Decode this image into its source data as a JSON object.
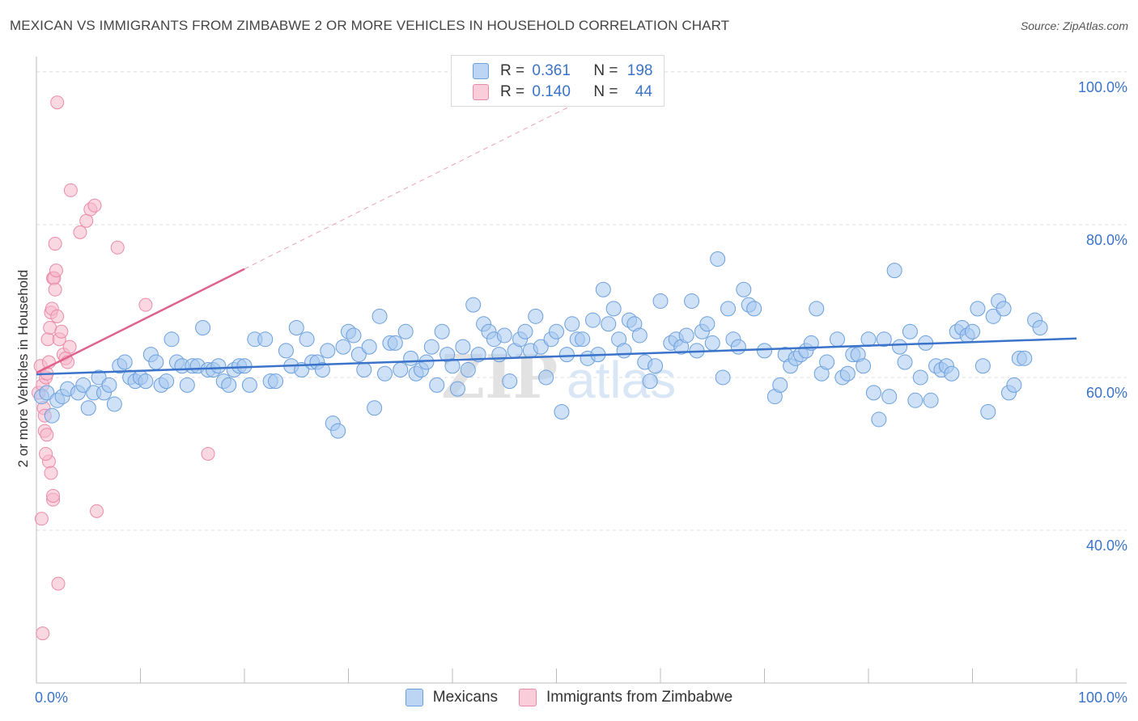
{
  "header": {
    "title": "MEXICAN VS IMMIGRANTS FROM ZIMBABWE 2 OR MORE VEHICLES IN HOUSEHOLD CORRELATION CHART",
    "source": "Source: ZipAtlas.com"
  },
  "legend": {
    "rows": [
      {
        "r_label": "R =",
        "r_value": "0.361",
        "n_label": "N =",
        "n_value": "198"
      },
      {
        "r_label": "R =",
        "r_value": "0.140",
        "n_label": "N =",
        "n_value": "44"
      }
    ]
  },
  "watermark": {
    "part1": "ZIP",
    "part2": "atlas"
  },
  "chart_data": {
    "type": "scatter",
    "xlabel": "",
    "ylabel": "2 or more Vehicles in Household",
    "xlim": [
      0,
      100
    ],
    "ylim": [
      20,
      102
    ],
    "x_tick_labels": [
      "0.0%",
      "100.0%"
    ],
    "y_tick_labels": [
      {
        "value": 40,
        "label": "40.0%"
      },
      {
        "value": 60,
        "label": "60.0%"
      },
      {
        "value": 80,
        "label": "80.0%"
      },
      {
        "value": 100,
        "label": "100.0%"
      }
    ],
    "grid": true,
    "colors": {
      "mexicans": "#a8c8f0",
      "mexicans_stroke": "#6b9fdc",
      "mexicans_line": "#3a73c9",
      "zimbabwe": "#f6b8ca",
      "zimbabwe_stroke": "#ea8aa8",
      "zimbabwe_line": "#e0608c",
      "axis_text": "#3a73c9"
    },
    "series": [
      {
        "name": "Mexicans",
        "trend": {
          "x": [
            0,
            100
          ],
          "y": [
            60.4,
            65.1
          ]
        },
        "points": [
          [
            0.5,
            57.5
          ],
          [
            1,
            58
          ],
          [
            1.5,
            55
          ],
          [
            2,
            57
          ],
          [
            2.5,
            57.5
          ],
          [
            3,
            58.5
          ],
          [
            4,
            58
          ],
          [
            4.5,
            59
          ],
          [
            5,
            56
          ],
          [
            5.5,
            58
          ],
          [
            6,
            60
          ],
          [
            6.5,
            58
          ],
          [
            7,
            59
          ],
          [
            7.5,
            56.5
          ],
          [
            8,
            61.5
          ],
          [
            8.5,
            62
          ],
          [
            9,
            60
          ],
          [
            9.5,
            59.5
          ],
          [
            10,
            60
          ],
          [
            10.5,
            59.5
          ],
          [
            11,
            63
          ],
          [
            11.5,
            62
          ],
          [
            12,
            59
          ],
          [
            12.5,
            59.5
          ],
          [
            13,
            65
          ],
          [
            13.5,
            62
          ],
          [
            14,
            61.5
          ],
          [
            14.5,
            59
          ],
          [
            15,
            61.5
          ],
          [
            15.5,
            61.5
          ],
          [
            16,
            66.5
          ],
          [
            16.5,
            61
          ],
          [
            17,
            61
          ],
          [
            17.5,
            61.5
          ],
          [
            18,
            59.5
          ],
          [
            18.5,
            59
          ],
          [
            19,
            61
          ],
          [
            19.5,
            61.5
          ],
          [
            20,
            61.5
          ],
          [
            20.5,
            59
          ],
          [
            21,
            65
          ],
          [
            22,
            65
          ],
          [
            22.5,
            59.5
          ],
          [
            23,
            59.5
          ],
          [
            24,
            63.5
          ],
          [
            24.5,
            61.5
          ],
          [
            25,
            66.5
          ],
          [
            25.5,
            61
          ],
          [
            26,
            65
          ],
          [
            26.5,
            62
          ],
          [
            27,
            62
          ],
          [
            27.5,
            61
          ],
          [
            28,
            63.5
          ],
          [
            28.5,
            54
          ],
          [
            29,
            53
          ],
          [
            29.5,
            64
          ],
          [
            30,
            66
          ],
          [
            30.5,
            65.5
          ],
          [
            31,
            63
          ],
          [
            31.5,
            61
          ],
          [
            32,
            64
          ],
          [
            32.5,
            56
          ],
          [
            33,
            68
          ],
          [
            33.5,
            60.5
          ],
          [
            34,
            64.5
          ],
          [
            34.5,
            64.5
          ],
          [
            35,
            61
          ],
          [
            35.5,
            66
          ],
          [
            36,
            62.5
          ],
          [
            36.5,
            60.5
          ],
          [
            37,
            61
          ],
          [
            37.5,
            62
          ],
          [
            38,
            64
          ],
          [
            38.5,
            59
          ],
          [
            39,
            66
          ],
          [
            39.5,
            63
          ],
          [
            40,
            61.5
          ],
          [
            40.5,
            58.5
          ],
          [
            41,
            64
          ],
          [
            41.5,
            61
          ],
          [
            42,
            69.5
          ],
          [
            42.5,
            63
          ],
          [
            43,
            67
          ],
          [
            43.5,
            66
          ],
          [
            44,
            65
          ],
          [
            44.5,
            63
          ],
          [
            45,
            65.5
          ],
          [
            45.5,
            59.5
          ],
          [
            46,
            63.5
          ],
          [
            46.5,
            65
          ],
          [
            47,
            66
          ],
          [
            47.5,
            63.5
          ],
          [
            48,
            68
          ],
          [
            48.5,
            64
          ],
          [
            49,
            60
          ],
          [
            49.5,
            65
          ],
          [
            50,
            66
          ],
          [
            50.5,
            55.5
          ],
          [
            51,
            63
          ],
          [
            51.5,
            67
          ],
          [
            52,
            65
          ],
          [
            52.5,
            65
          ],
          [
            53,
            62.5
          ],
          [
            53.5,
            67.5
          ],
          [
            54,
            63
          ],
          [
            54.5,
            71.5
          ],
          [
            55,
            67
          ],
          [
            55.5,
            69
          ],
          [
            56,
            65
          ],
          [
            56.5,
            63.5
          ],
          [
            57,
            67.5
          ],
          [
            57.5,
            67
          ],
          [
            58,
            65.5
          ],
          [
            58.5,
            62
          ],
          [
            59,
            59.5
          ],
          [
            59.5,
            61.5
          ],
          [
            60,
            70
          ],
          [
            61,
            64.5
          ],
          [
            61.5,
            65
          ],
          [
            62,
            64
          ],
          [
            62.5,
            65.5
          ],
          [
            63,
            70
          ],
          [
            63.5,
            63.5
          ],
          [
            64,
            66
          ],
          [
            64.5,
            67
          ],
          [
            65,
            64.5
          ],
          [
            65.5,
            75.5
          ],
          [
            66,
            60
          ],
          [
            66.5,
            69
          ],
          [
            67,
            65
          ],
          [
            67.5,
            64
          ],
          [
            68,
            71.5
          ],
          [
            68.5,
            69.5
          ],
          [
            69,
            69
          ],
          [
            70,
            63.5
          ],
          [
            71,
            57.5
          ],
          [
            71.5,
            59
          ],
          [
            72,
            63
          ],
          [
            72.5,
            61.5
          ],
          [
            73,
            62.5
          ],
          [
            73.5,
            63
          ],
          [
            74,
            63.5
          ],
          [
            74.5,
            64.5
          ],
          [
            75,
            69
          ],
          [
            75.5,
            60.5
          ],
          [
            76,
            62
          ],
          [
            77,
            65
          ],
          [
            77.5,
            60
          ],
          [
            78,
            60.5
          ],
          [
            78.5,
            63
          ],
          [
            79,
            63
          ],
          [
            79.5,
            61.5
          ],
          [
            80,
            65
          ],
          [
            80.5,
            58
          ],
          [
            81,
            54.5
          ],
          [
            81.5,
            65
          ],
          [
            82,
            57.5
          ],
          [
            82.5,
            74
          ],
          [
            83,
            64
          ],
          [
            83.5,
            62
          ],
          [
            84,
            66
          ],
          [
            84.5,
            57
          ],
          [
            85,
            60
          ],
          [
            85.5,
            64.5
          ],
          [
            86,
            57
          ],
          [
            86.5,
            61.5
          ],
          [
            87,
            61
          ],
          [
            87.5,
            61.5
          ],
          [
            88,
            60.5
          ],
          [
            88.5,
            66
          ],
          [
            89,
            66.5
          ],
          [
            89.5,
            65.5
          ],
          [
            90,
            66
          ],
          [
            90.5,
            69
          ],
          [
            91,
            61.5
          ],
          [
            91.5,
            55.5
          ],
          [
            92,
            68
          ],
          [
            92.5,
            70
          ],
          [
            93,
            69
          ],
          [
            93.5,
            58
          ],
          [
            94,
            59
          ],
          [
            94.5,
            62.5
          ],
          [
            95,
            62.5
          ],
          [
            96,
            67.5
          ],
          [
            96.5,
            66.5
          ]
        ]
      },
      {
        "name": "Immigrants from Zimbabwe",
        "trend_solid": {
          "x": [
            0,
            20
          ],
          "y": [
            60.6,
            74.2
          ]
        },
        "trend_dashed": {
          "x": [
            20,
            55
          ],
          "y": [
            74.2,
            98
          ]
        },
        "points": [
          [
            0.2,
            58
          ],
          [
            0.4,
            61.5
          ],
          [
            0.6,
            59
          ],
          [
            0.8,
            53
          ],
          [
            1,
            52.5
          ],
          [
            1.2,
            49
          ],
          [
            1.4,
            47.5
          ],
          [
            1.6,
            44
          ],
          [
            0.5,
            41.5
          ],
          [
            0.6,
            26.5
          ],
          [
            0.7,
            56
          ],
          [
            0.8,
            55
          ],
          [
            0.9,
            60
          ],
          [
            1,
            60.5
          ],
          [
            1.1,
            65
          ],
          [
            1.2,
            62
          ],
          [
            1.3,
            66.5
          ],
          [
            1.4,
            68.5
          ],
          [
            1.5,
            69
          ],
          [
            1.6,
            73
          ],
          [
            1.7,
            73
          ],
          [
            1.8,
            71.5
          ],
          [
            1.9,
            74
          ],
          [
            2,
            68
          ],
          [
            2.2,
            65
          ],
          [
            2.4,
            66
          ],
          [
            2.6,
            63
          ],
          [
            2.8,
            62.5
          ],
          [
            3,
            62
          ],
          [
            3.2,
            64
          ],
          [
            0.9,
            50
          ],
          [
            1.6,
            44.5
          ],
          [
            2.1,
            33
          ],
          [
            1.8,
            77.5
          ],
          [
            3.3,
            84.5
          ],
          [
            4.2,
            79
          ],
          [
            4.8,
            80.5
          ],
          [
            5.2,
            82
          ],
          [
            5.6,
            82.5
          ],
          [
            7.8,
            77
          ],
          [
            10.5,
            69.5
          ],
          [
            16.5,
            50
          ],
          [
            5.8,
            42.5
          ],
          [
            2,
            96
          ]
        ]
      }
    ]
  }
}
